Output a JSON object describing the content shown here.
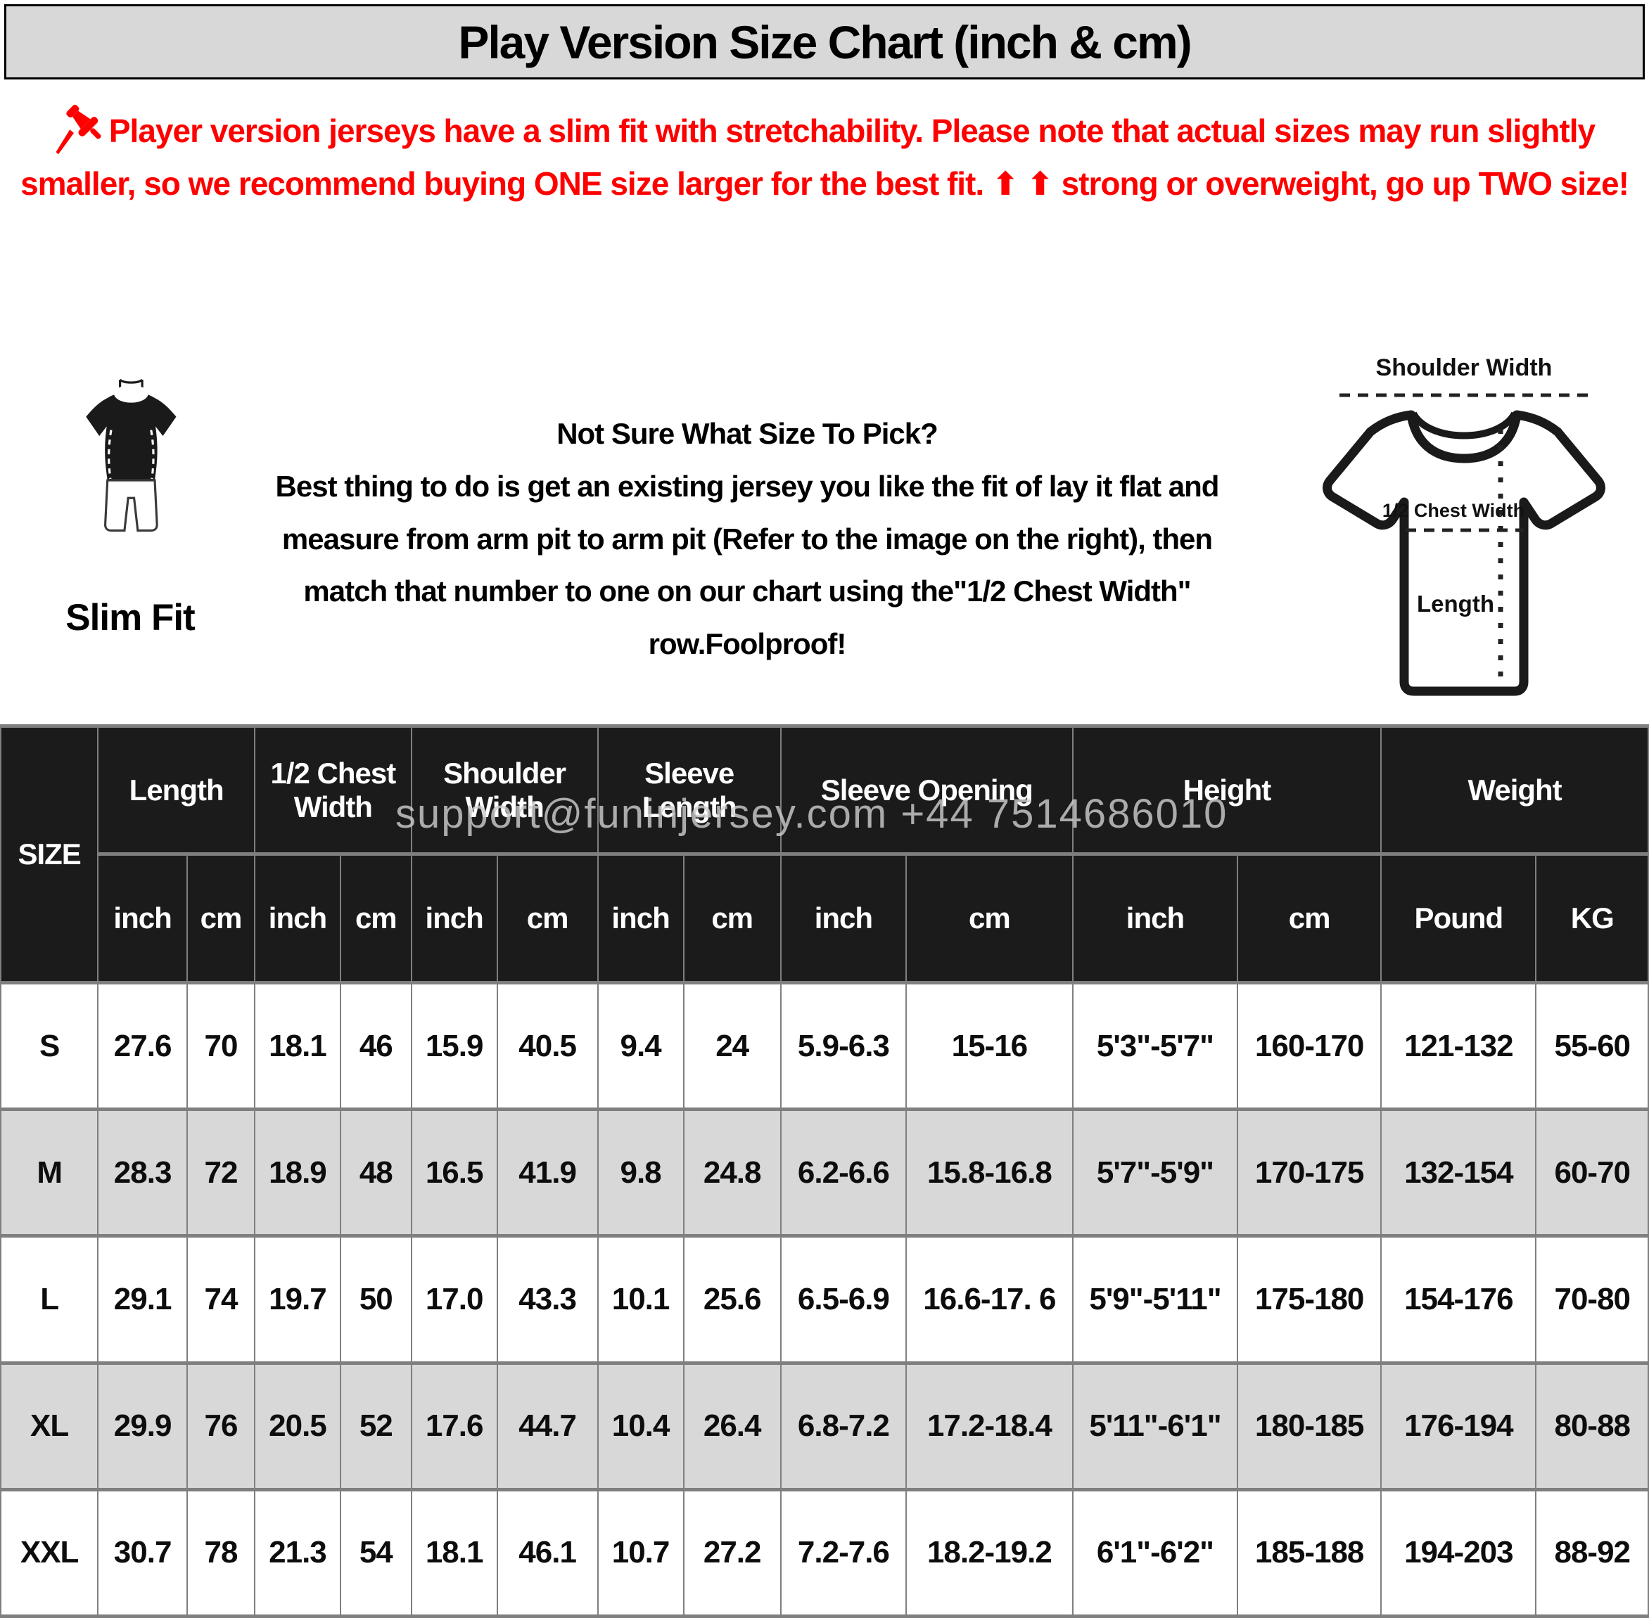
{
  "title": "Play Version Size Chart (inch & cm)",
  "notice": {
    "text": "Player version jerseys have a slim fit with stretchability. Please note that actual sizes may run slightly smaller, so we recommend buying ONE size larger for the best fit. ⬆ ⬆ strong or overweight, go up TWO size!"
  },
  "fit": {
    "label": "Slim Fit"
  },
  "guide": {
    "heading": "Not Sure What Size To Pick?",
    "body": "Best thing to do is get an existing jersey you like the fit of lay it flat and measure from arm pit to arm pit (Refer to the image on the right), then match that number to one on our chart using the\"1/2 Chest Width\" row.Foolproof!"
  },
  "diagram": {
    "shoulder_width": "Shoulder Width",
    "half_chest_width": "1/2 Chest Width",
    "length": "Length"
  },
  "watermark": "support@funinjersey.com  +44 7514686010",
  "colors": {
    "accent_red": "#fe0000",
    "header_black": "#1b1b1b",
    "row_shade": "#d8d8d8",
    "border_gray": "#7f7f7f",
    "title_bar_gray": "#d8d8d8"
  },
  "table": {
    "size_header": "SIZE",
    "groups": [
      {
        "label": "Length",
        "units": [
          "inch",
          "cm"
        ]
      },
      {
        "label": "1/2 Chest Width",
        "units": [
          "inch",
          "cm"
        ]
      },
      {
        "label": "Shoulder Width",
        "units": [
          "inch",
          "cm"
        ]
      },
      {
        "label": "Sleeve Length",
        "units": [
          "inch",
          "cm"
        ]
      },
      {
        "label": "Sleeve Opening",
        "units": [
          "inch",
          "cm"
        ]
      },
      {
        "label": "Height",
        "units": [
          "inch",
          "cm"
        ]
      },
      {
        "label": "Weight",
        "units": [
          "Pound",
          "KG"
        ]
      }
    ],
    "rows": [
      {
        "size": "S",
        "values": [
          "27.6",
          "70",
          "18.1",
          "46",
          "15.9",
          "40.5",
          "9.4",
          "24",
          "5.9-6.3",
          "15-16",
          "5'3\"-5'7\"",
          "160-170",
          "121-132",
          "55-60"
        ]
      },
      {
        "size": "M",
        "values": [
          "28.3",
          "72",
          "18.9",
          "48",
          "16.5",
          "41.9",
          "9.8",
          "24.8",
          "6.2-6.6",
          "15.8-16.8",
          "5'7\"-5'9\"",
          "170-175",
          "132-154",
          "60-70"
        ]
      },
      {
        "size": "L",
        "values": [
          "29.1",
          "74",
          "19.7",
          "50",
          "17.0",
          "43.3",
          "10.1",
          "25.6",
          "6.5-6.9",
          "16.6-17. 6",
          "5'9\"-5'11\"",
          "175-180",
          "154-176",
          "70-80"
        ]
      },
      {
        "size": "XL",
        "values": [
          "29.9",
          "76",
          "20.5",
          "52",
          "17.6",
          "44.7",
          "10.4",
          "26.4",
          "6.8-7.2",
          "17.2-18.4",
          "5'11\"-6'1\"",
          "180-185",
          "176-194",
          "80-88"
        ]
      },
      {
        "size": "XXL",
        "values": [
          "30.7",
          "78",
          "21.3",
          "54",
          "18.1",
          "46.1",
          "10.7",
          "27.2",
          "7.2-7.6",
          "18.2-19.2",
          "6'1\"-6'2\"",
          "185-188",
          "194-203",
          "88-92"
        ]
      }
    ]
  }
}
